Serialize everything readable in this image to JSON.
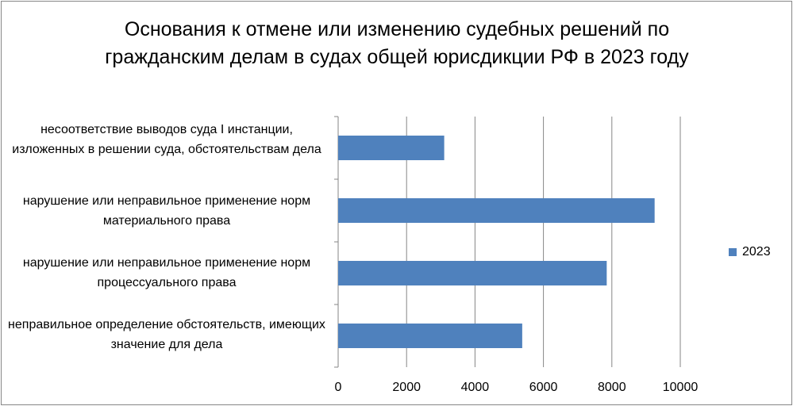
{
  "chart_data": {
    "type": "bar",
    "orientation": "horizontal",
    "title": "Основания к отмене или изменению судебных решений по гражданским делам в судах общей юрисдикции РФ в 2023 году",
    "categories": [
      "несоответствие выводов суда I инстанции, изложенных в решении суда, обстоятельствам дела",
      "нарушение или неправильное применение норм материального права",
      "нарушение или неправильное применение норм процессуального права",
      "неправильное определение обстоятельств, имеющих значение для дела"
    ],
    "series": [
      {
        "name": "2023",
        "values": [
          3100,
          9250,
          7850,
          5380
        ],
        "color": "#4F81BD"
      }
    ],
    "xlim": [
      0,
      10000
    ],
    "xticks": [
      0,
      2000,
      4000,
      6000,
      8000,
      10000
    ],
    "xtick_labels": [
      "0",
      "2000",
      "4000",
      "6000",
      "8000",
      "10000"
    ],
    "grid": "vertical",
    "legend_position": "right"
  }
}
